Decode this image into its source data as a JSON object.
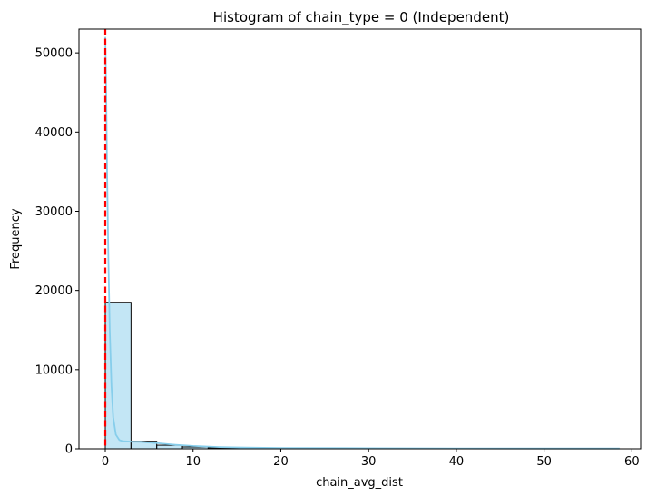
{
  "chart_data": {
    "type": "bar",
    "title": "Histogram of chain_type = 0 (Independent)",
    "xlabel": "chain_avg_dist",
    "ylabel": "Frequency",
    "xlim": [
      -3,
      61
    ],
    "ylim": [
      0,
      53000
    ],
    "x_ticks": [
      0,
      10,
      20,
      30,
      40,
      50,
      60
    ],
    "y_ticks": [
      0,
      10000,
      20000,
      30000,
      40000,
      50000
    ],
    "bin_edges": [
      0,
      2.93,
      5.86,
      8.79,
      11.72,
      14.65,
      17.58,
      20.51,
      23.44,
      26.37,
      29.3,
      32.23,
      35.16,
      38.09,
      41.02,
      43.95,
      46.88,
      49.81,
      52.74,
      55.67,
      58.6
    ],
    "counts": [
      18500,
      950,
      450,
      230,
      120,
      70,
      45,
      30,
      20,
      15,
      10,
      8,
      6,
      5,
      4,
      3,
      3,
      2,
      2,
      2
    ],
    "bar_color": "#87ceeb",
    "bar_edge_color": "#000000",
    "kde": {
      "color": "#87ceeb",
      "x": [
        0,
        0.1,
        0.2,
        0.35,
        0.5,
        0.7,
        0.9,
        1.2,
        1.6,
        2.0,
        3.0,
        4.0,
        6.0,
        8.0,
        10.0,
        13.0,
        16.0,
        20.0,
        30.0,
        40.0,
        50.0,
        58.6
      ],
      "y": [
        52000,
        45000,
        35000,
        24000,
        15000,
        8000,
        4000,
        1800,
        1100,
        950,
        900,
        880,
        700,
        500,
        350,
        220,
        150,
        100,
        70,
        50,
        40,
        30
      ]
    },
    "reference_line": {
      "x": 0,
      "color": "#ff0000",
      "style": "dashed"
    }
  }
}
